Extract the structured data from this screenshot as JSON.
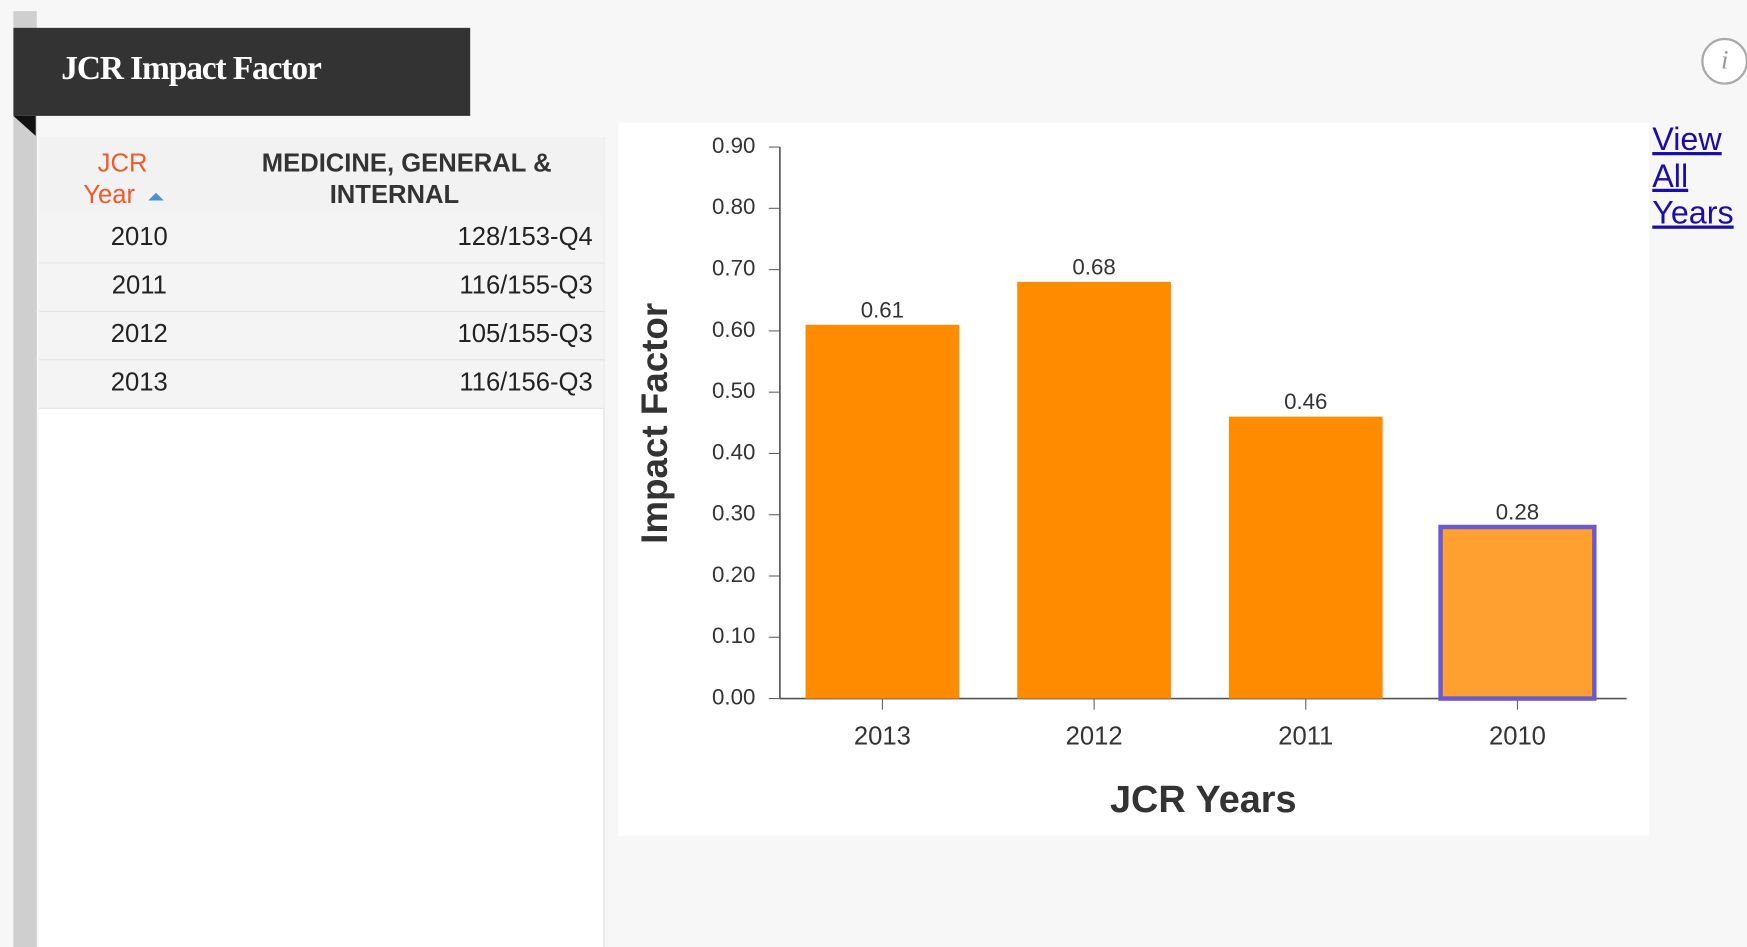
{
  "header": {
    "title": "JCR Impact Factor"
  },
  "table": {
    "columns": [
      [
        "JCR",
        "Year"
      ],
      [
        "MEDICINE, GENERAL &",
        "INTERNAL"
      ]
    ],
    "rows": [
      [
        "2010",
        "128/153-Q4"
      ],
      [
        "2011",
        "116/155-Q3"
      ],
      [
        "2012",
        "105/155-Q3"
      ],
      [
        "2013",
        "116/156-Q3"
      ]
    ]
  },
  "link": [
    "View",
    "All",
    "Years"
  ],
  "chart_data": {
    "type": "bar",
    "x_label": "JCR Years",
    "y_label": "Impact Factor",
    "categories": [
      "2013",
      "2012",
      "2011",
      "2010"
    ],
    "values": [
      0.61,
      0.68,
      0.46,
      0.28
    ],
    "color": "#ff8c00",
    "selected_color": "#ffa030",
    "selected_border": "#6a5acd",
    "selected_category": "2010",
    "ylim": [
      0,
      0.9
    ],
    "yticks": [
      {
        "value": 0,
        "label": "0.00"
      },
      {
        "value": 0.1,
        "label": "0.10"
      },
      {
        "value": 0.2,
        "label": "0.20"
      },
      {
        "value": 0.3,
        "label": "0.30"
      },
      {
        "value": 0.4,
        "label": "0.40"
      },
      {
        "value": 0.5,
        "label": "0.50"
      },
      {
        "value": 0.6,
        "label": "0.60"
      },
      {
        "value": 0.7,
        "label": "0.70"
      },
      {
        "value": 0.8,
        "label": "0.80"
      },
      {
        "value": 0.9,
        "label": "0.90"
      }
    ]
  }
}
